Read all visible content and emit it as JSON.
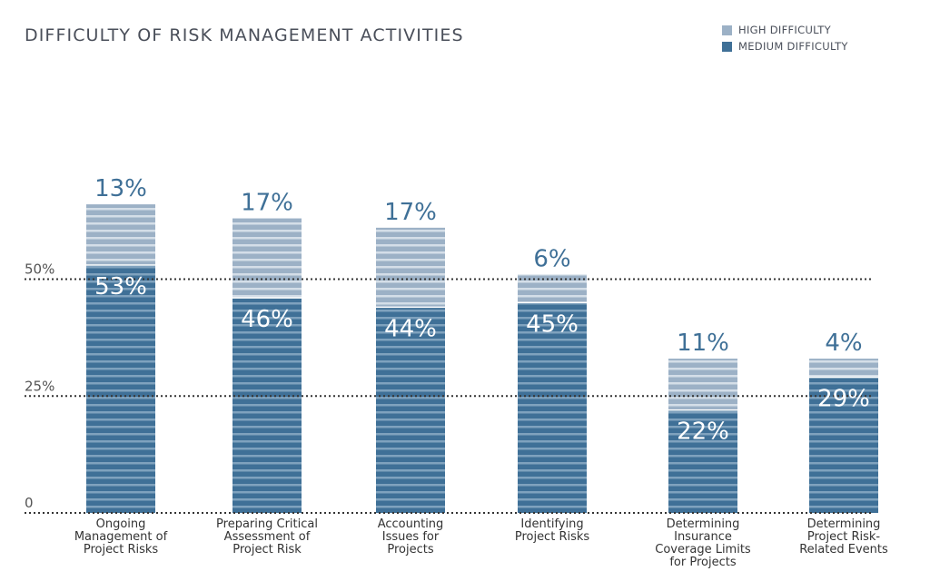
{
  "chart_data": {
    "type": "bar",
    "stacked": true,
    "title": "DIFFICULTY OF RISK MANAGEMENT ACTIVITIES",
    "categories": [
      "Ongoing Management of Project Risks",
      "Preparing Critical Assessment of Project Risk",
      "Accounting Issues for Projects",
      "Identifying Project Risks",
      "Determining Insurance Coverage Limits for Projects",
      "Determining Project Risk-Related Events"
    ],
    "category_lines": [
      [
        "Ongoing",
        "Management of",
        "Project Risks"
      ],
      [
        "Preparing Critical",
        "Assessment of",
        "Project Risk"
      ],
      [
        "Accounting",
        "Issues for",
        "Projects"
      ],
      [
        "Identifying",
        "Project Risks"
      ],
      [
        "Determining",
        "Insurance",
        "Coverage Limits",
        "for Projects"
      ],
      [
        "Determining",
        "Project Risk-",
        "Related Events"
      ]
    ],
    "series": [
      {
        "name": "MEDIUM DIFFICULTY",
        "values": [
          53,
          46,
          44,
          45,
          22,
          29
        ],
        "color": "#3f7097",
        "stripe_color": "#7fa2be"
      },
      {
        "name": "HIGH DIFFICULTY",
        "values": [
          13,
          17,
          17,
          6,
          11,
          4
        ],
        "color": "#9cb1c6",
        "stripe_color": "#d4dee8"
      }
    ],
    "value_labels": {
      "MEDIUM DIFFICULTY": [
        "53%",
        "46%",
        "44%",
        "45%",
        "22%",
        "29%"
      ],
      "HIGH DIFFICULTY": [
        "13%",
        "17%",
        "17%",
        "6%",
        "11%",
        "4%"
      ]
    },
    "yticks": [
      {
        "value": 0,
        "label": "0"
      },
      {
        "value": 25,
        "label": "25%"
      },
      {
        "value": 50,
        "label": "50%"
      }
    ],
    "ylim": [
      0,
      75
    ],
    "grid": true,
    "legend_position": "top-right",
    "label_color_outside": "#3f7097",
    "label_color_inside": "#ffffff"
  }
}
